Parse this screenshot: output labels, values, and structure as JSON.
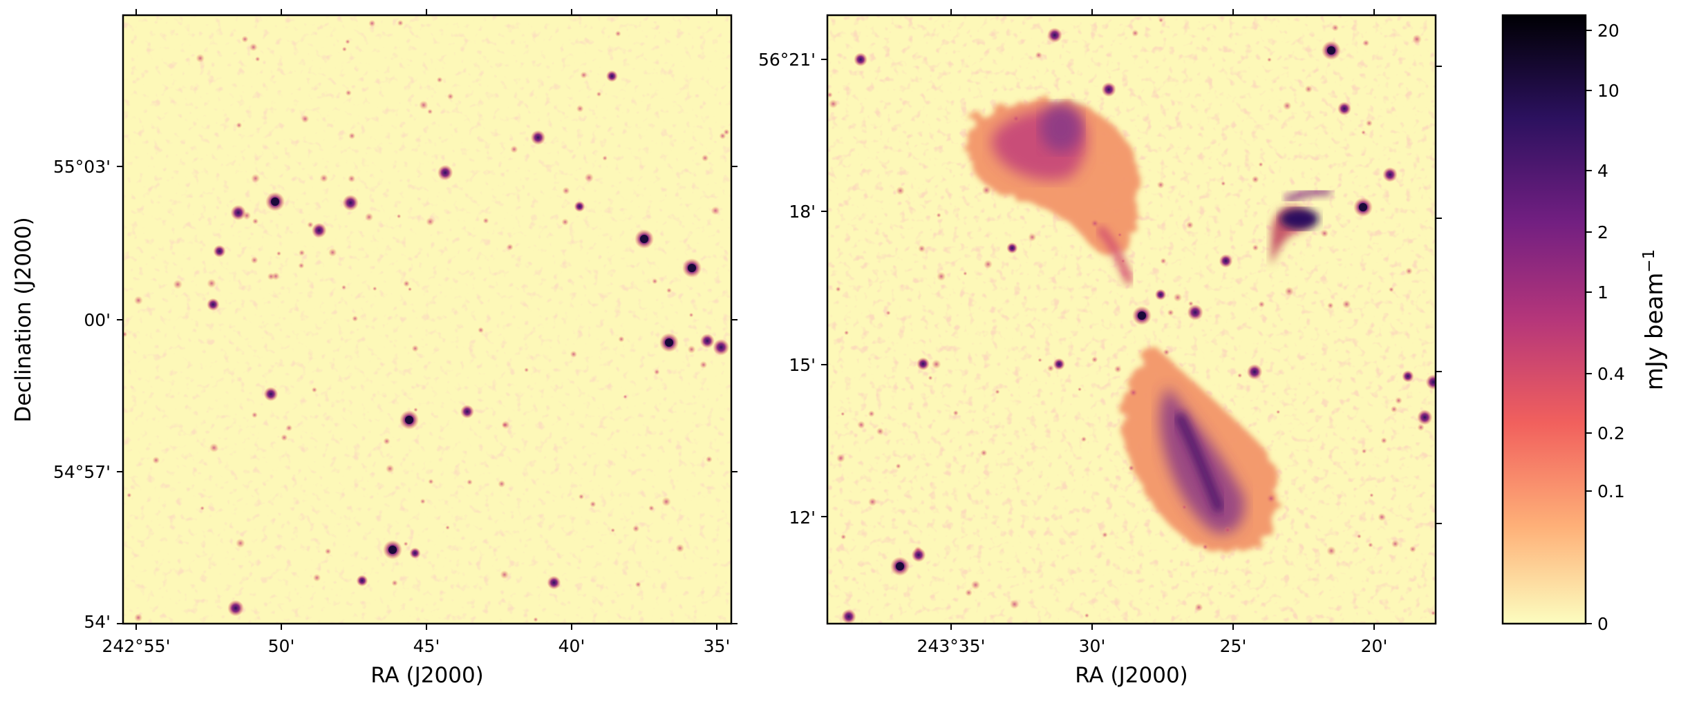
{
  "figure": {
    "panels": [
      {
        "id": "left",
        "xlabel": "RA (J2000)",
        "ylabel": "Declination (J2000)",
        "xticks": [
          "242°55'",
          "50'",
          "45'",
          "40'",
          "35'"
        ],
        "yticks": [
          "55°03'",
          "00'",
          "54°57'",
          "54'"
        ]
      },
      {
        "id": "right",
        "xlabel": "RA (J2000)",
        "ylabel": "",
        "xticks": [
          "243°35'",
          "30'",
          "25'",
          "20'"
        ],
        "yticks": [
          "56°21'",
          "18'",
          "15'",
          "12'"
        ]
      }
    ],
    "colorbar": {
      "label_main": "mJy beam",
      "label_exp": "−1",
      "ticks": [
        "20",
        "10",
        "4",
        "2",
        "1",
        "0.4",
        "0.2",
        "0.1",
        "0"
      ],
      "tick_values": [
        20,
        10,
        4,
        2,
        1,
        0.4,
        0.2,
        0.1,
        0
      ],
      "colormap": "magma_r",
      "colors": [
        "#fcfdbf",
        "#feb078",
        "#f1605d",
        "#b5367a",
        "#721f81",
        "#2c115f",
        "#000004"
      ]
    },
    "colors": {
      "background": "#fdf8b8",
      "noise": "#f7bf8e",
      "source_dim": "#e07060",
      "source_mid": "#b13d79",
      "source_bright": "#3a1458",
      "lobe_outer": "#f3966b",
      "lobe_inner": "#8b3b86"
    }
  }
}
